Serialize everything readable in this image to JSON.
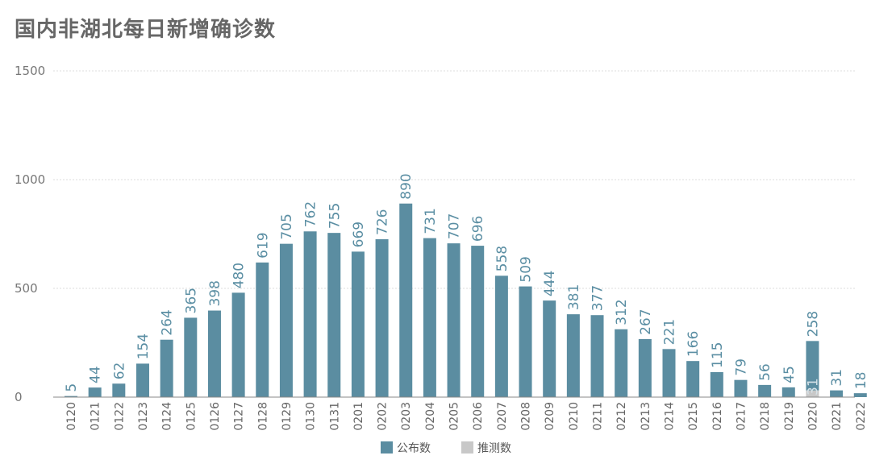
{
  "chart_data": {
    "type": "bar",
    "title": "国内非湖北每日新增确诊数",
    "categories": [
      "0120",
      "0121",
      "0122",
      "0123",
      "0124",
      "0125",
      "0126",
      "0127",
      "0128",
      "0129",
      "0130",
      "0131",
      "0201",
      "0202",
      "0203",
      "0204",
      "0205",
      "0206",
      "0207",
      "0208",
      "0209",
      "0210",
      "0211",
      "0212",
      "0213",
      "0214",
      "0215",
      "0216",
      "0217",
      "0218",
      "0219",
      "0220",
      "0221",
      "0222"
    ],
    "series": [
      {
        "name": "公布数",
        "color": "#5b8da1",
        "values": [
          5,
          44,
          62,
          154,
          264,
          365,
          398,
          480,
          619,
          705,
          762,
          755,
          669,
          726,
          890,
          731,
          707,
          696,
          558,
          509,
          444,
          381,
          377,
          312,
          267,
          221,
          166,
          115,
          79,
          56,
          45,
          227,
          31,
          18
        ]
      },
      {
        "name": "推测数",
        "color": "#c8c8c8",
        "values": [
          0,
          0,
          0,
          0,
          0,
          0,
          0,
          0,
          0,
          0,
          0,
          0,
          0,
          0,
          0,
          0,
          0,
          0,
          0,
          0,
          0,
          0,
          0,
          0,
          0,
          0,
          0,
          0,
          0,
          0,
          0,
          31,
          0,
          0
        ]
      }
    ],
    "data_labels": [
      "5",
      "44",
      "62",
      "154",
      "264",
      "365",
      "398",
      "480",
      "619",
      "705",
      "762",
      "755",
      "669",
      "726",
      "890",
      "731",
      "707",
      "696",
      "558",
      "509",
      "444",
      "381",
      "377",
      "312",
      "267",
      "221",
      "166",
      "115",
      "79",
      "56",
      "45",
      "258",
      "31",
      "18"
    ],
    "inner_labels": {
      "0220": "31"
    },
    "ylim": [
      0,
      1500
    ],
    "yticks": [
      0,
      500,
      1000,
      1500
    ],
    "grid": true,
    "stacked": true,
    "legend": "bottom"
  }
}
